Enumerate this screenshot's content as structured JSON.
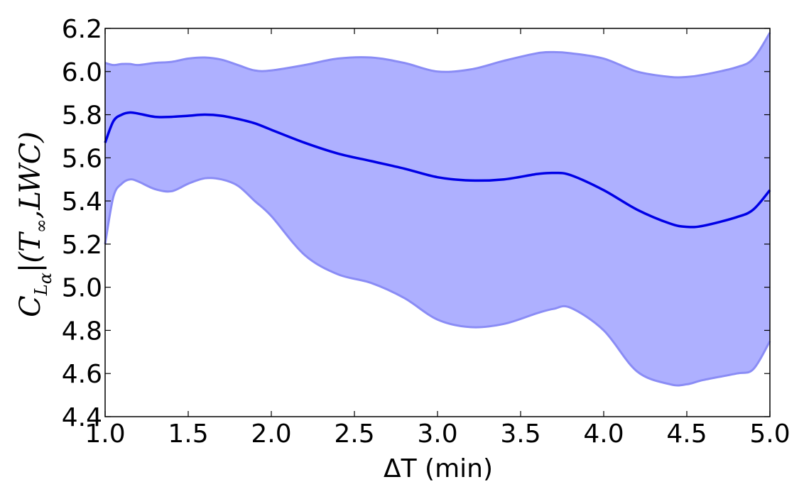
{
  "chart_data": {
    "type": "area",
    "xlabel": "ΔT (min)",
    "ylabel": {
      "base": "C",
      "sub": "L",
      "subsub": "α",
      "bar": "|",
      "args": "(T",
      "args_sub": "∞",
      "args_rest": ",LWC)"
    },
    "xlim": [
      1.0,
      5.0
    ],
    "ylim": [
      4.4,
      6.2
    ],
    "xticks": [
      1.0,
      1.5,
      2.0,
      2.5,
      3.0,
      3.5,
      4.0,
      4.5,
      5.0
    ],
    "xtick_labels": [
      "1.0",
      "1.5",
      "2.0",
      "2.5",
      "3.0",
      "3.5",
      "4.0",
      "4.5",
      "5.0"
    ],
    "yticks": [
      4.4,
      4.6,
      4.8,
      5.0,
      5.2,
      5.4,
      5.6,
      5.8,
      6.0,
      6.2
    ],
    "ytick_labels": [
      "4.4",
      "4.6",
      "4.8",
      "5.0",
      "5.2",
      "5.4",
      "5.6",
      "5.8",
      "6.0",
      "6.2"
    ],
    "grid": false,
    "colors": {
      "line": "#0000e6",
      "band_fill": "#aeb0ff",
      "band_edge": "#8a8cf5",
      "frame": "#000000"
    },
    "x": [
      1.0,
      1.05,
      1.1,
      1.15,
      1.2,
      1.3,
      1.4,
      1.5,
      1.6,
      1.7,
      1.8,
      1.9,
      2.0,
      2.2,
      2.4,
      2.6,
      2.8,
      3.0,
      3.2,
      3.4,
      3.6,
      3.7,
      3.8,
      4.0,
      4.2,
      4.4,
      4.5,
      4.6,
      4.8,
      4.9,
      5.0
    ],
    "mean": [
      5.67,
      5.77,
      5.8,
      5.81,
      5.805,
      5.79,
      5.79,
      5.795,
      5.8,
      5.795,
      5.78,
      5.76,
      5.73,
      5.67,
      5.62,
      5.585,
      5.55,
      5.51,
      5.495,
      5.5,
      5.525,
      5.53,
      5.52,
      5.45,
      5.36,
      5.295,
      5.28,
      5.285,
      5.325,
      5.36,
      5.45
    ],
    "upper": [
      6.04,
      6.03,
      6.035,
      6.035,
      6.03,
      6.04,
      6.045,
      6.06,
      6.065,
      6.055,
      6.03,
      6.005,
      6.005,
      6.03,
      6.06,
      6.065,
      6.04,
      6.0,
      6.01,
      6.05,
      6.085,
      6.09,
      6.085,
      6.06,
      6.0,
      5.975,
      5.975,
      5.985,
      6.02,
      6.06,
      6.18
    ],
    "lower": [
      5.2,
      5.42,
      5.48,
      5.5,
      5.49,
      5.455,
      5.445,
      5.48,
      5.505,
      5.5,
      5.47,
      5.4,
      5.33,
      5.15,
      5.06,
      5.02,
      4.95,
      4.85,
      4.815,
      4.83,
      4.88,
      4.9,
      4.905,
      4.8,
      4.61,
      4.55,
      4.55,
      4.57,
      4.6,
      4.62,
      4.75
    ]
  }
}
